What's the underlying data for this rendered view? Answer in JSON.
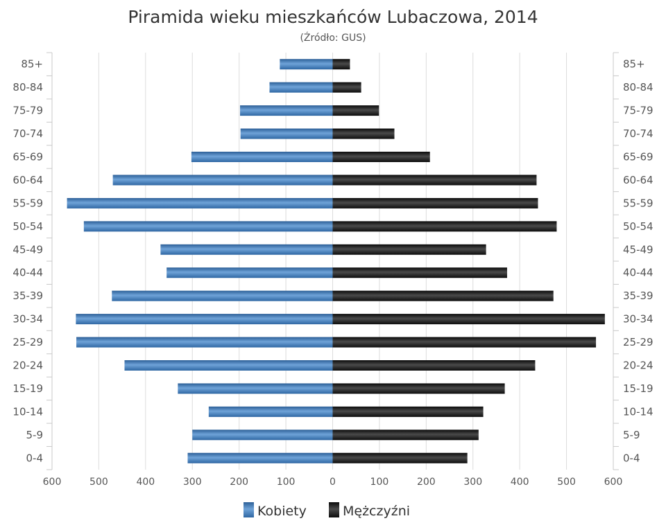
{
  "chart_data": {
    "type": "bar",
    "title": "Piramida wieku mieszkańców Lubaczowa, 2014",
    "subtitle": "(Źródło: GUS)",
    "categories": [
      "85+",
      "80-84",
      "75-79",
      "70-74",
      "65-69",
      "60-64",
      "55-59",
      "50-54",
      "45-49",
      "40-44",
      "35-39",
      "30-34",
      "25-29",
      "20-24",
      "15-19",
      "10-14",
      "5-9",
      "0-4"
    ],
    "series": [
      {
        "name": "Kobiety",
        "color": "#3a76b4",
        "values": [
          113,
          135,
          198,
          197,
          302,
          470,
          568,
          532,
          368,
          355,
          472,
          549,
          548,
          445,
          331,
          265,
          300,
          310
        ]
      },
      {
        "name": "Mężczyźni",
        "color": "#1a1a1a",
        "values": [
          37,
          61,
          99,
          132,
          208,
          436,
          439,
          479,
          328,
          373,
          472,
          582,
          563,
          433,
          368,
          322,
          312,
          288
        ]
      }
    ],
    "xlim": [
      -600,
      600
    ],
    "xticks": [
      "600",
      "500",
      "400",
      "300",
      "200",
      "100",
      "0",
      "100",
      "200",
      "300",
      "400",
      "500",
      "600"
    ],
    "grid": true,
    "legend_position": "bottom"
  }
}
